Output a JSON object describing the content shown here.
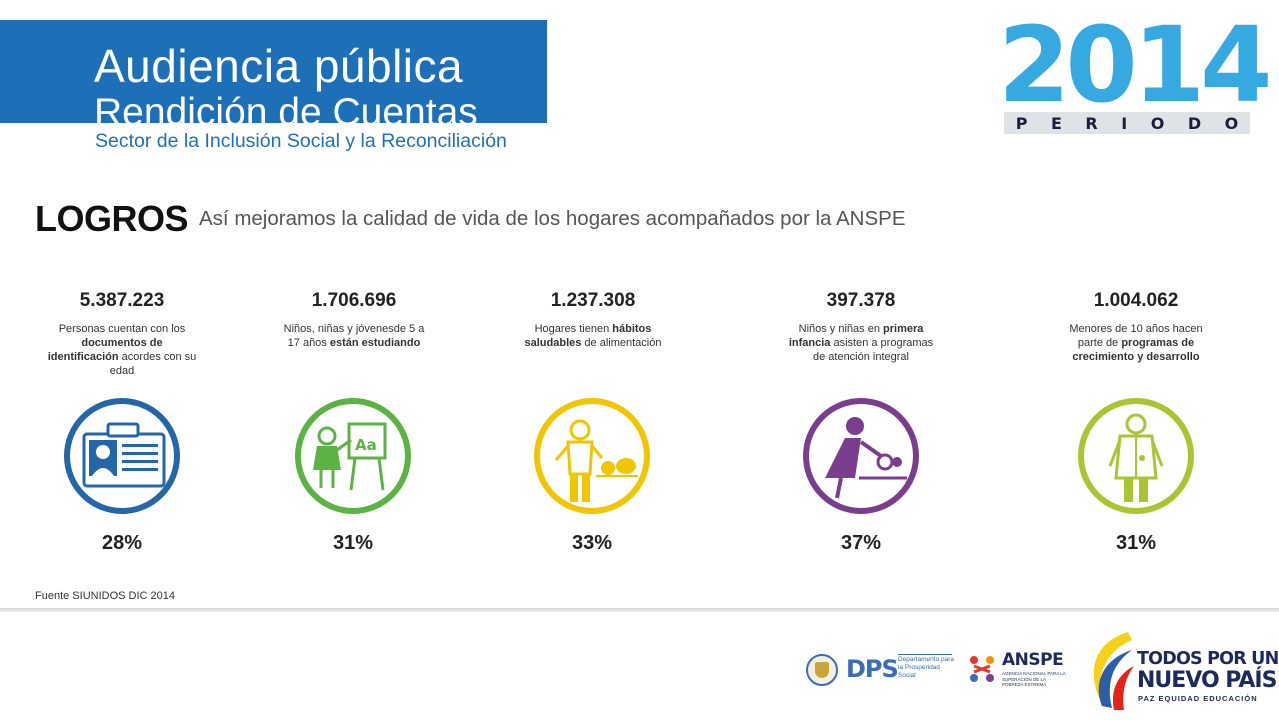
{
  "header": {
    "title_line1": "Audiencia pública",
    "title_line2": "Rendición de Cuentas",
    "sector": "Sector de la Inclusión Social y la Reconciliación",
    "year": "2014",
    "periodo_letters": [
      "P",
      "E",
      "R",
      "I",
      "O",
      "D",
      "O"
    ]
  },
  "section": {
    "title": "LOGROS",
    "subtitle": "Así mejoramos la calidad de vida de los hogares acompañados por la ANSPE"
  },
  "achievements": [
    {
      "value": "5.387.223",
      "desc_html": "Personas cuentan con los <b>documentos de identificación</b> acordes con su edad",
      "percent": "28%",
      "icon": "id-card-icon",
      "color": "#2466a8"
    },
    {
      "value": "1.706.696",
      "desc_html": "Niños, niñas y jóvenesde 5 a 17 años <b>están estudiando</b>",
      "percent": "31%",
      "icon": "student-board-icon",
      "color": "#5bb343"
    },
    {
      "value": "1.237.308",
      "desc_html": "Hogares tienen <b>hábitos saludables</b> de alimentación",
      "percent": "33%",
      "icon": "healthy-food-icon",
      "color": "#f1c500"
    },
    {
      "value": "397.378",
      "desc_html": "Niños y niñas en <b>primera infancia</b> asisten a programas de atención integral",
      "percent": "37%",
      "icon": "early-childhood-icon",
      "color": "#7b3d8e"
    },
    {
      "value": "1.004.062",
      "desc_html": "Menores de 10 años hacen parte de <b>programas de crecimiento y desarrollo</b>",
      "percent": "31%",
      "icon": "doctor-icon",
      "color": "#a9c632"
    }
  ],
  "source": "Fuente SIUNIDOS DIC 2014",
  "footer": {
    "dps_name": "DPS",
    "dps_desc": "Departamento para la Prosperidad Social",
    "anspe_name": "ANSPE",
    "anspe_desc": "AGENCIA NACIONAL PARA LA SUPERACIÓN DE LA POBREZA EXTREMA",
    "gov_line1": "TODOS POR UN",
    "gov_line2": "NUEVO PAÍS",
    "gov_line3": "PAZ  EQUIDAD  EDUCACIÓN"
  }
}
